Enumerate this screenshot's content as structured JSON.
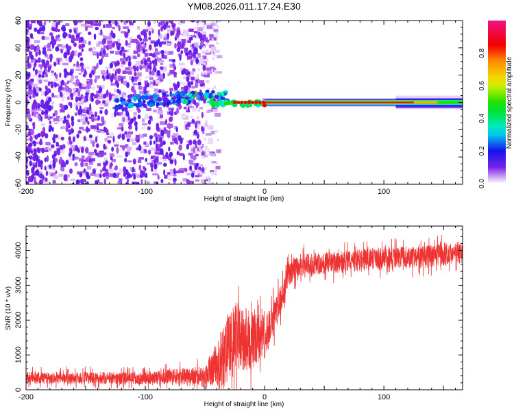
{
  "title": "YM08.2026.011.17.24.E30",
  "chart_data": [
    {
      "type": "heatmap",
      "title": "YM08.2026.011.17.24.E30",
      "xlabel": "Height of straight line (km)",
      "ylabel": "Frequency (Hz)",
      "xlim": [
        -200,
        166
      ],
      "ylim": [
        -60,
        60
      ],
      "xticks": [
        -200,
        -100,
        0,
        100
      ],
      "xtick_labels": [
        "-200",
        "-100",
        "0",
        "100"
      ],
      "yticks": [
        -60,
        -40,
        -20,
        0,
        20,
        40,
        60
      ],
      "ytick_labels": [
        "-60",
        "-40",
        "-20",
        "0",
        "20",
        "40",
        "60"
      ],
      "colorbar": {
        "label": "Normalized spectral amplitude",
        "range": [
          0,
          1
        ],
        "ticks": [
          0.0,
          0.2,
          0.4,
          0.6,
          0.8
        ],
        "tick_labels": [
          "0.0",
          "0.2",
          "0.4",
          "0.6",
          "0.8"
        ],
        "colormap": "rainbow (white-purple-blue-cyan-green-yellow-red-pink)"
      },
      "noise_region": {
        "x_range": [
          -200,
          -45
        ],
        "amplitude": [
          0.02,
          0.15
        ]
      },
      "signal_track": [
        {
          "x": -120,
          "freq": -4,
          "amp": 0.12
        },
        {
          "x": -100,
          "freq": 0,
          "amp": 0.2
        },
        {
          "x": -90,
          "freq": 3,
          "amp": 0.3
        },
        {
          "x": -60,
          "freq": 5,
          "amp": 0.35
        },
        {
          "x": -45,
          "freq": 5,
          "amp": 0.45
        },
        {
          "x": -30,
          "freq": 8,
          "amp": 0.4
        },
        {
          "x": -40,
          "freq": -3,
          "amp": 0.3
        },
        {
          "x": -25,
          "freq": 0,
          "amp": 0.6
        },
        {
          "x": -10,
          "freq": 0,
          "amp": 0.75
        },
        {
          "x": 0,
          "freq": 0,
          "amp": 0.95
        },
        {
          "x": 100,
          "freq": 0,
          "amp": 0.95
        },
        {
          "x": 130,
          "freq": 0,
          "amp": 0.65
        },
        {
          "x": 166,
          "freq": 0,
          "amp": 0.5
        }
      ]
    },
    {
      "type": "line",
      "xlabel": "Height of straight line (km)",
      "ylabel": "SNR (10 * v/v)",
      "xlim": [
        -200,
        166
      ],
      "ylim": [
        0,
        4700
      ],
      "xticks": [
        -200,
        -100,
        0,
        100
      ],
      "xtick_labels": [
        "-200",
        "-100",
        "0",
        "100"
      ],
      "yticks": [
        0,
        1000,
        2000,
        3000,
        4000
      ],
      "ytick_labels": [
        "0",
        "1000",
        "2000",
        "3000",
        "4000"
      ],
      "color": "#ee3333",
      "series": [
        {
          "name": "SNR",
          "trend_x": [
            -200,
            -100,
            -50,
            -35,
            -25,
            -10,
            0,
            10,
            20,
            30,
            60,
            100,
            130,
            166
          ],
          "trend_y": [
            350,
            330,
            420,
            900,
            1500,
            1400,
            1500,
            2200,
            3300,
            3600,
            3650,
            3800,
            3800,
            3950
          ],
          "noise_amplitude": [
            250,
            250,
            400,
            1200,
            1500,
            1200,
            900,
            700,
            500,
            450,
            450,
            450,
            450,
            450
          ]
        }
      ]
    }
  ]
}
